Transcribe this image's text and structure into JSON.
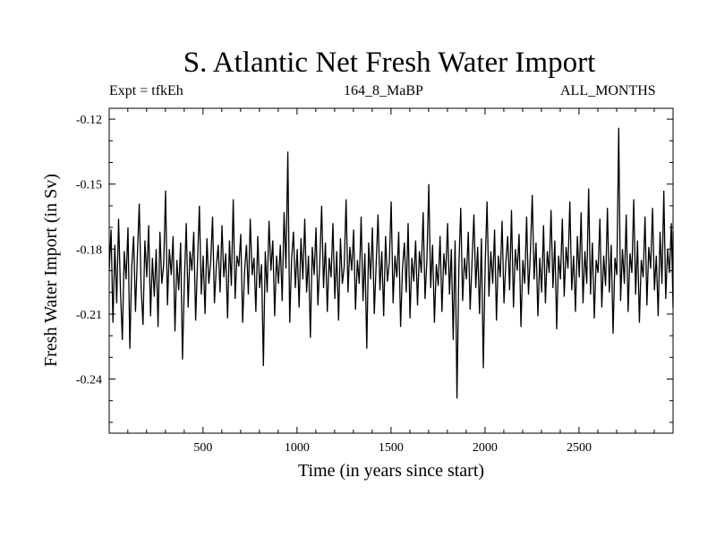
{
  "header": {
    "title": "S. Atlantic Net Fresh Water Import",
    "expt": "Expt = tfkEh",
    "run": "164_8_MaBP",
    "period": "ALL_MONTHS"
  },
  "chart_data": {
    "type": "line",
    "title": "S. Atlantic Net Fresh Water Import",
    "xlabel": "Time (in years since start)",
    "ylabel": "Fresh Water Import (in Sv)",
    "xlim": [
      1,
      3000
    ],
    "ylim": [
      -0.265,
      -0.115
    ],
    "xticks": [
      500,
      1000,
      1500,
      2000,
      2500
    ],
    "xtick_labels": [
      "500",
      "1000",
      "1500",
      "2000",
      "2500"
    ],
    "yticks": [
      -0.12,
      -0.15,
      -0.18,
      -0.21,
      -0.24
    ],
    "ytick_labels": [
      "-0.12",
      "-0.15",
      "-0.18",
      "-0.21",
      "-0.24"
    ],
    "grid": false,
    "series": [
      {
        "step_years": 10,
        "x_start": 1,
        "color": "#000000",
        "values": [
          -0.19,
          -0.171,
          -0.214,
          -0.178,
          -0.205,
          -0.166,
          -0.199,
          -0.222,
          -0.181,
          -0.194,
          -0.17,
          -0.226,
          -0.188,
          -0.174,
          -0.209,
          -0.183,
          -0.159,
          -0.198,
          -0.215,
          -0.176,
          -0.193,
          -0.169,
          -0.211,
          -0.184,
          -0.202,
          -0.18,
          -0.216,
          -0.172,
          -0.196,
          -0.187,
          -0.153,
          -0.206,
          -0.18,
          -0.192,
          -0.174,
          -0.218,
          -0.185,
          -0.199,
          -0.177,
          -0.231,
          -0.195,
          -0.168,
          -0.207,
          -0.181,
          -0.19,
          -0.172,
          -0.213,
          -0.186,
          -0.16,
          -0.201,
          -0.183,
          -0.21,
          -0.175,
          -0.196,
          -0.186,
          -0.165,
          -0.205,
          -0.188,
          -0.178,
          -0.2,
          -0.169,
          -0.193,
          -0.182,
          -0.212,
          -0.176,
          -0.197,
          -0.157,
          -0.203,
          -0.183,
          -0.188,
          -0.173,
          -0.214,
          -0.19,
          -0.178,
          -0.201,
          -0.166,
          -0.192,
          -0.184,
          -0.209,
          -0.174,
          -0.198,
          -0.187,
          -0.234,
          -0.181,
          -0.2,
          -0.167,
          -0.19,
          -0.176,
          -0.211,
          -0.183,
          -0.196,
          -0.178,
          -0.204,
          -0.163,
          -0.189,
          -0.135,
          -0.214,
          -0.185,
          -0.172,
          -0.198,
          -0.18,
          -0.207,
          -0.175,
          -0.194,
          -0.166,
          -0.2,
          -0.183,
          -0.221,
          -0.179,
          -0.192,
          -0.17,
          -0.206,
          -0.186,
          -0.16,
          -0.198,
          -0.177,
          -0.209,
          -0.184,
          -0.193,
          -0.168,
          -0.203,
          -0.181,
          -0.213,
          -0.175,
          -0.196,
          -0.188,
          -0.157,
          -0.2,
          -0.179,
          -0.19,
          -0.171,
          -0.208,
          -0.185,
          -0.196,
          -0.165,
          -0.204,
          -0.182,
          -0.226,
          -0.177,
          -0.194,
          -0.17,
          -0.21,
          -0.187,
          -0.164,
          -0.199,
          -0.181,
          -0.211,
          -0.174,
          -0.195,
          -0.186,
          -0.158,
          -0.205,
          -0.183,
          -0.193,
          -0.172,
          -0.216,
          -0.189,
          -0.177,
          -0.2,
          -0.168,
          -0.212,
          -0.184,
          -0.195,
          -0.176,
          -0.206,
          -0.181,
          -0.191,
          -0.163,
          -0.203,
          -0.185,
          -0.15,
          -0.198,
          -0.178,
          -0.214,
          -0.187,
          -0.197,
          -0.174,
          -0.209,
          -0.182,
          -0.192,
          -0.168,
          -0.201,
          -0.18,
          -0.222,
          -0.176,
          -0.249,
          -0.188,
          -0.161,
          -0.204,
          -0.184,
          -0.194,
          -0.172,
          -0.208,
          -0.186,
          -0.164,
          -0.198,
          -0.179,
          -0.21,
          -0.175,
          -0.235,
          -0.187,
          -0.158,
          -0.202,
          -0.181,
          -0.196,
          -0.171,
          -0.213,
          -0.183,
          -0.193,
          -0.167,
          -0.205,
          -0.186,
          -0.174,
          -0.199,
          -0.162,
          -0.207,
          -0.18,
          -0.19,
          -0.173,
          -0.216,
          -0.185,
          -0.196,
          -0.165,
          -0.201,
          -0.182,
          -0.155,
          -0.194,
          -0.177,
          -0.211,
          -0.184,
          -0.2,
          -0.169,
          -0.205,
          -0.181,
          -0.191,
          -0.162,
          -0.198,
          -0.176,
          -0.217,
          -0.183,
          -0.194,
          -0.166,
          -0.202,
          -0.179,
          -0.189,
          -0.158,
          -0.199,
          -0.183,
          -0.209,
          -0.174,
          -0.193,
          -0.163,
          -0.205,
          -0.181,
          -0.196,
          -0.152,
          -0.201,
          -0.177,
          -0.212,
          -0.185,
          -0.191,
          -0.166,
          -0.207,
          -0.183,
          -0.197,
          -0.161,
          -0.2,
          -0.178,
          -0.219,
          -0.184,
          -0.192,
          -0.124,
          -0.204,
          -0.18,
          -0.196,
          -0.164,
          -0.209,
          -0.182,
          -0.191,
          -0.157,
          -0.201,
          -0.176,
          -0.214,
          -0.185,
          -0.193,
          -0.165,
          -0.206,
          -0.179,
          -0.189,
          -0.161,
          -0.199,
          -0.183,
          -0.211,
          -0.172,
          -0.196,
          -0.153,
          -0.203,
          -0.18,
          -0.191,
          -0.168,
          -0.207,
          -0.186,
          -0.172,
          -0.194
        ]
      }
    ]
  }
}
